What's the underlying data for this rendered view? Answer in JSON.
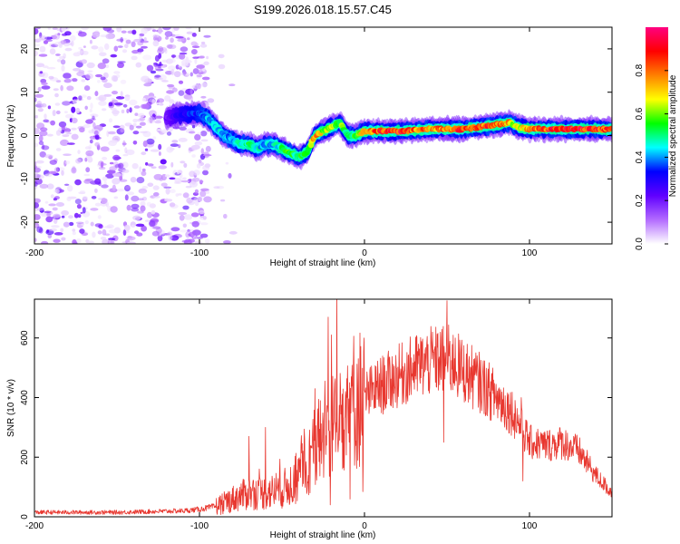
{
  "chart_data": [
    {
      "type": "heatmap",
      "title": "S199.2026.018.15.57.C45",
      "xlabel": "Height of straight line (km)",
      "ylabel": "Frequency (Hz)",
      "xlim": [
        -200,
        150
      ],
      "ylim": [
        -25,
        25
      ],
      "xticks": [
        -200,
        -100,
        0,
        100
      ],
      "xtick_labels": [
        "-200",
        "-100",
        "0",
        "100"
      ],
      "yticks": [
        -20,
        -10,
        0,
        10,
        20
      ],
      "ytick_labels": [
        "-20",
        "-10",
        "0",
        "10",
        "20"
      ],
      "colorbar": {
        "label": "Normalized spectral amplitude",
        "range": [
          0,
          1
        ],
        "ticks": [
          0,
          0.2,
          0.4,
          0.6,
          0.8
        ],
        "tick_labels": [
          "0.0",
          "0.2",
          "0.4",
          "0.6",
          "0.8"
        ],
        "colors": [
          "#ffffff",
          "#b36bff",
          "#6000ff",
          "#0000ff",
          "#00ffff",
          "#00ff00",
          "#ffff00",
          "#ff8000",
          "#ff0000",
          "#ff0080"
        ]
      },
      "noise_region": {
        "x": [
          -200,
          -95
        ],
        "freq": [
          -25,
          25
        ],
        "amplitude": [
          0.02,
          0.25
        ]
      },
      "ridge_x": [
        -120,
        -110,
        -100,
        -95,
        -90,
        -85,
        -80,
        -75,
        -70,
        -65,
        -60,
        -55,
        -50,
        -45,
        -40,
        -35,
        -30,
        -25,
        -20,
        -15,
        -10,
        -5,
        0,
        10,
        20,
        30,
        40,
        50,
        60,
        70,
        80,
        88,
        92,
        100,
        120,
        150
      ],
      "ridge_freq": [
        4,
        5,
        5,
        4,
        2,
        0,
        -1,
        -2,
        -2,
        -3,
        -2,
        -2,
        -3,
        -4,
        -5,
        -4,
        0,
        1,
        2,
        3,
        0,
        0,
        1,
        1,
        1,
        1.2,
        1.5,
        1.5,
        1.5,
        2,
        2.5,
        3,
        2,
        1.5,
        1.5,
        1.5
      ],
      "ridge_amp": [
        0.2,
        0.3,
        0.35,
        0.4,
        0.45,
        0.4,
        0.4,
        0.45,
        0.5,
        0.45,
        0.4,
        0.45,
        0.5,
        0.55,
        0.5,
        0.55,
        0.75,
        0.6,
        0.65,
        0.6,
        0.5,
        0.55,
        0.7,
        0.85,
        0.9,
        0.8,
        0.75,
        0.8,
        0.85,
        0.8,
        0.85,
        0.7,
        0.6,
        0.8,
        0.9,
        0.8
      ]
    },
    {
      "type": "line",
      "xlabel": "Height of straight line (km)",
      "ylabel": "SNR (10 * v/v)",
      "xlim": [
        -200,
        150
      ],
      "ylim": [
        0,
        730
      ],
      "xticks": [
        -200,
        -100,
        0,
        100
      ],
      "xtick_labels": [
        "-200",
        "-100",
        "0",
        "100"
      ],
      "yticks": [
        0,
        200,
        400,
        600
      ],
      "ytick_labels": [
        "0",
        "200",
        "400",
        "600"
      ],
      "color": "#e8372f",
      "envelope_x": [
        -200,
        -150,
        -110,
        -100,
        -90,
        -80,
        -70,
        -60,
        -50,
        -40,
        -30,
        -25,
        -20,
        -10,
        0,
        10,
        20,
        30,
        40,
        50,
        60,
        70,
        80,
        90,
        95,
        100,
        110,
        120,
        130,
        140,
        150
      ],
      "envelope_y": [
        15,
        15,
        20,
        25,
        35,
        60,
        80,
        80,
        90,
        130,
        230,
        280,
        320,
        390,
        400,
        440,
        470,
        500,
        520,
        530,
        490,
        450,
        400,
        350,
        300,
        250,
        240,
        250,
        220,
        140,
        80
      ],
      "spikes": [
        {
          "x": -22,
          "y": 670
        },
        {
          "x": -20,
          "y": 610
        },
        {
          "x": -70,
          "y": 270
        },
        {
          "x": -60,
          "y": 300
        },
        {
          "x": -30,
          "y": 430
        },
        {
          "x": -8,
          "y": 470
        },
        {
          "x": 50,
          "y": 725
        },
        {
          "x": 48,
          "y": 250
        },
        {
          "x": 55,
          "y": 600
        },
        {
          "x": 95,
          "y": 400
        },
        {
          "x": 96,
          "y": 120
        }
      ]
    }
  ]
}
